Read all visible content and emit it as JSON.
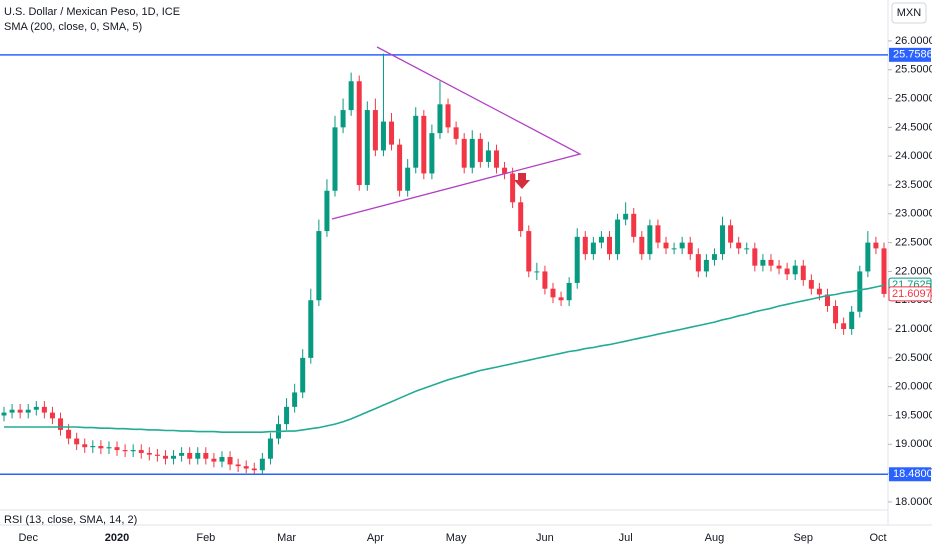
{
  "chart_data": {
    "type": "candlestick",
    "title": "U.S. Dollar / Mexican Peso, 1D, ICE",
    "indicator": "SMA (200, close, 0, SMA, 5)",
    "lower_pane": "RSI (13, close, SMA, 14, 2)",
    "currency": "MXN",
    "up_color": "#089981",
    "down_color": "#f23645",
    "sma_color": "#22ab94",
    "line_color": "#2962ff",
    "grid": false,
    "ylim": [
      17.86,
      26.71
    ],
    "yticks": [
      {
        "value": 18,
        "label": "18.00000"
      },
      {
        "value": 18.5,
        "label": "18.50000"
      },
      {
        "value": 19,
        "label": "19.00000"
      },
      {
        "value": 19.5,
        "label": "19.50000"
      },
      {
        "value": 20,
        "label": "20.00000"
      },
      {
        "value": 20.5,
        "label": "20.50000"
      },
      {
        "value": 21,
        "label": "21.00000"
      },
      {
        "value": 21.5,
        "label": "21.50000"
      },
      {
        "value": 22,
        "label": "22.00000"
      },
      {
        "value": 22.5,
        "label": "22.50000"
      },
      {
        "value": 23,
        "label": "23.00000"
      },
      {
        "value": 23.5,
        "label": "23.50000"
      },
      {
        "value": 24,
        "label": "24.00000"
      },
      {
        "value": 24.5,
        "label": "24.50000"
      },
      {
        "value": 25,
        "label": "25.00000"
      },
      {
        "value": 25.5,
        "label": "25.50000"
      },
      {
        "value": 26,
        "label": "26.00000"
      }
    ],
    "hlines": [
      {
        "value": 25.75861,
        "label": "25.75861"
      },
      {
        "value": 18.48,
        "label": "18.48000"
      }
    ],
    "price_tags": [
      {
        "value": 21.76251,
        "label": "21.76251",
        "color": "#089981"
      },
      {
        "value": 21.60971,
        "label": "21.60971",
        "color": "#f23645"
      }
    ],
    "categories": [
      null,
      null,
      null,
      "Dec",
      null,
      null,
      null,
      null,
      null,
      null,
      null,
      null,
      null,
      null,
      "2020",
      null,
      null,
      null,
      null,
      null,
      null,
      null,
      null,
      null,
      null,
      "Feb",
      null,
      null,
      null,
      null,
      null,
      null,
      null,
      null,
      null,
      "Mar",
      null,
      null,
      null,
      null,
      null,
      null,
      null,
      null,
      null,
      null,
      "Apr",
      null,
      null,
      null,
      null,
      null,
      null,
      null,
      null,
      null,
      "May",
      null,
      null,
      null,
      null,
      null,
      null,
      null,
      null,
      null,
      null,
      "Jun",
      null,
      null,
      null,
      null,
      null,
      null,
      null,
      null,
      null,
      "Jul",
      null,
      null,
      null,
      null,
      null,
      null,
      null,
      null,
      null,
      null,
      "Aug",
      null,
      null,
      null,
      null,
      null,
      null,
      null,
      null,
      null,
      null,
      "Sep",
      null,
      null,
      null,
      null,
      null,
      null,
      null,
      null,
      null,
      "Oct"
    ],
    "open": [
      19.5,
      19.55,
      19.6,
      19.55,
      19.6,
      19.65,
      19.55,
      19.45,
      19.25,
      19.1,
      19.0,
      18.95,
      18.97,
      18.93,
      18.95,
      18.9,
      18.88,
      18.9,
      18.85,
      18.82,
      18.8,
      18.75,
      18.8,
      18.85,
      18.75,
      18.85,
      18.75,
      18.7,
      18.78,
      18.65,
      18.62,
      18.58,
      18.55,
      18.75,
      19.1,
      19.35,
      19.65,
      19.9,
      20.5,
      21.5,
      22.7,
      23.4,
      24.5,
      24.8,
      25.3,
      23.5,
      24.8,
      24.1,
      24.6,
      24.2,
      23.4,
      23.8,
      24.7,
      23.7,
      24.4,
      24.9,
      24.5,
      24.3,
      23.8,
      24.3,
      23.9,
      24.1,
      23.8,
      23.7,
      23.2,
      22.7,
      22.0,
      22.0,
      21.7,
      21.55,
      21.5,
      21.8,
      22.6,
      22.3,
      22.5,
      22.6,
      22.3,
      22.9,
      23.0,
      22.6,
      22.3,
      22.8,
      22.5,
      22.4,
      22.4,
      22.5,
      22.3,
      22.0,
      22.2,
      22.3,
      22.8,
      22.5,
      22.4,
      22.4,
      22.1,
      22.2,
      22.1,
      22.05,
      21.95,
      22.1,
      21.85,
      21.7,
      21.6,
      21.4,
      21.1,
      21.0,
      21.3,
      22.0,
      22.5,
      22.4
    ],
    "high": [
      19.65,
      19.7,
      19.7,
      19.7,
      19.75,
      19.75,
      19.65,
      19.55,
      19.35,
      19.2,
      19.1,
      19.07,
      19.07,
      19.05,
      19.05,
      19.0,
      19.0,
      19.0,
      18.95,
      18.92,
      18.9,
      18.9,
      18.95,
      18.95,
      18.95,
      18.95,
      18.85,
      18.88,
      18.88,
      18.75,
      18.72,
      18.68,
      18.85,
      19.2,
      19.5,
      19.8,
      20.05,
      20.65,
      21.7,
      22.9,
      23.6,
      24.7,
      25.0,
      25.45,
      25.4,
      24.95,
      25.0,
      25.78,
      24.75,
      24.3,
      23.95,
      24.85,
      24.8,
      24.55,
      25.3,
      25.0,
      24.6,
      24.4,
      24.45,
      24.4,
      24.25,
      24.2,
      23.9,
      23.8,
      23.3,
      22.8,
      22.15,
      22.1,
      21.8,
      21.65,
      21.9,
      22.75,
      22.7,
      22.6,
      22.7,
      22.7,
      23.0,
      23.2,
      23.1,
      22.7,
      22.9,
      22.9,
      22.6,
      22.5,
      22.6,
      22.6,
      22.4,
      22.3,
      22.4,
      22.95,
      22.9,
      22.6,
      22.5,
      22.5,
      22.3,
      22.3,
      22.2,
      22.15,
      22.2,
      22.2,
      21.95,
      21.8,
      21.7,
      21.5,
      21.2,
      21.4,
      22.1,
      22.7,
      22.6,
      22.5
    ],
    "low": [
      19.4,
      19.45,
      19.45,
      19.45,
      19.5,
      19.45,
      19.35,
      19.15,
      19.0,
      18.9,
      18.85,
      18.85,
      18.83,
      18.83,
      18.8,
      18.78,
      18.78,
      18.75,
      18.72,
      18.7,
      18.65,
      18.65,
      18.7,
      18.65,
      18.65,
      18.65,
      18.6,
      18.6,
      18.55,
      18.52,
      18.5,
      18.48,
      18.48,
      18.65,
      19.0,
      19.25,
      19.55,
      19.8,
      20.4,
      21.4,
      22.6,
      23.3,
      24.4,
      24.7,
      23.4,
      23.4,
      24.0,
      24.0,
      24.1,
      23.3,
      23.3,
      23.7,
      23.6,
      23.6,
      24.3,
      24.4,
      24.2,
      23.7,
      23.7,
      23.8,
      23.8,
      23.7,
      23.6,
      23.1,
      22.6,
      21.9,
      21.85,
      21.6,
      21.45,
      21.4,
      21.4,
      21.7,
      22.2,
      22.2,
      22.4,
      22.2,
      22.2,
      22.8,
      22.5,
      22.2,
      22.2,
      22.4,
      22.3,
      22.3,
      22.3,
      22.2,
      21.9,
      21.9,
      22.1,
      22.2,
      22.4,
      22.3,
      22.3,
      22.0,
      22.0,
      22.0,
      21.95,
      21.85,
      21.85,
      21.75,
      21.6,
      21.5,
      21.3,
      21.0,
      20.9,
      20.9,
      21.2,
      21.9,
      22.3,
      21.55
    ],
    "close": [
      19.55,
      19.6,
      19.55,
      19.6,
      19.65,
      19.55,
      19.45,
      19.25,
      19.1,
      19.0,
      18.95,
      18.97,
      18.93,
      18.95,
      18.9,
      18.88,
      18.9,
      18.85,
      18.82,
      18.8,
      18.75,
      18.8,
      18.85,
      18.75,
      18.85,
      18.75,
      18.7,
      18.78,
      18.65,
      18.62,
      18.58,
      18.55,
      18.75,
      19.1,
      19.35,
      19.65,
      19.9,
      20.5,
      21.5,
      22.7,
      23.4,
      24.5,
      24.8,
      25.3,
      23.5,
      24.8,
      24.1,
      24.6,
      24.2,
      23.4,
      23.8,
      24.7,
      23.7,
      24.4,
      24.9,
      24.5,
      24.3,
      23.8,
      24.3,
      23.9,
      24.1,
      23.8,
      23.7,
      23.2,
      22.7,
      22.0,
      22.0,
      21.7,
      21.55,
      21.5,
      21.8,
      22.6,
      22.3,
      22.5,
      22.6,
      22.3,
      22.9,
      23.0,
      22.6,
      22.3,
      22.8,
      22.5,
      22.4,
      22.4,
      22.5,
      22.3,
      22.0,
      22.2,
      22.3,
      22.8,
      22.5,
      22.4,
      22.4,
      22.1,
      22.2,
      22.1,
      22.05,
      21.95,
      22.1,
      21.85,
      21.7,
      21.6,
      21.4,
      21.1,
      21.0,
      21.3,
      22.0,
      22.5,
      22.4,
      21.60971
    ],
    "sma": [
      19.3,
      19.3,
      19.3,
      19.3,
      19.3,
      19.3,
      19.3,
      19.3,
      19.3,
      19.3,
      19.29,
      19.29,
      19.28,
      19.28,
      19.27,
      19.27,
      19.26,
      19.26,
      19.25,
      19.25,
      19.24,
      19.24,
      19.23,
      19.23,
      19.22,
      19.22,
      19.22,
      19.21,
      19.21,
      19.21,
      19.21,
      19.21,
      19.21,
      19.22,
      19.22,
      19.23,
      19.23,
      19.25,
      19.27,
      19.29,
      19.32,
      19.35,
      19.39,
      19.44,
      19.5,
      19.56,
      19.62,
      19.68,
      19.74,
      19.8,
      19.86,
      19.92,
      19.97,
      20.02,
      20.07,
      20.12,
      20.16,
      20.2,
      20.24,
      20.28,
      20.31,
      20.34,
      20.37,
      20.4,
      20.43,
      20.46,
      20.49,
      20.52,
      20.55,
      20.58,
      20.61,
      20.63,
      20.66,
      20.68,
      20.71,
      20.73,
      20.76,
      20.79,
      20.82,
      20.85,
      20.88,
      20.91,
      20.94,
      20.97,
      21.0,
      21.03,
      21.06,
      21.09,
      21.12,
      21.16,
      21.19,
      21.23,
      21.26,
      21.3,
      21.33,
      21.36,
      21.4,
      21.43,
      21.46,
      21.49,
      21.52,
      21.55,
      21.58,
      21.6,
      21.63,
      21.65,
      21.68,
      21.7,
      21.73,
      21.76251
    ]
  }
}
